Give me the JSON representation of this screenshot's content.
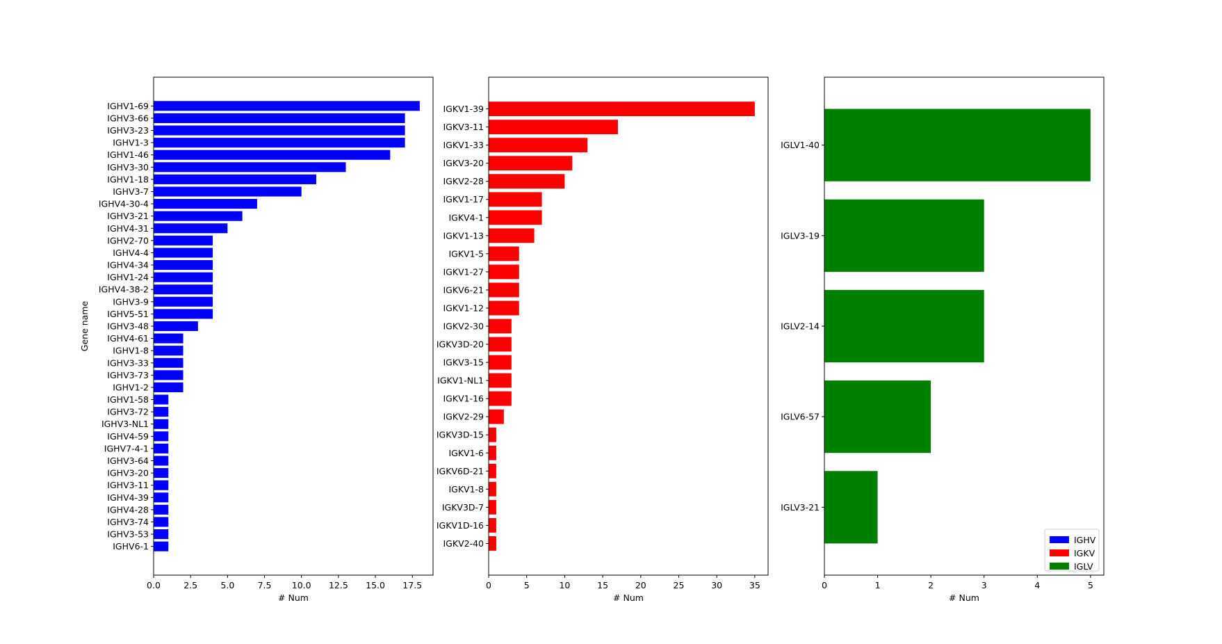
{
  "chart_data": [
    {
      "type": "bar",
      "orientation": "horizontal",
      "categories": [
        "IGHV1-69",
        "IGHV3-66",
        "IGHV3-23",
        "IGHV1-3",
        "IGHV1-46",
        "IGHV3-30",
        "IGHV1-18",
        "IGHV3-7",
        "IGHV4-30-4",
        "IGHV3-21",
        "IGHV4-31",
        "IGHV2-70",
        "IGHV4-4",
        "IGHV4-34",
        "IGHV1-24",
        "IGHV4-38-2",
        "IGHV3-9",
        "IGHV5-51",
        "IGHV3-48",
        "IGHV4-61",
        "IGHV1-8",
        "IGHV3-33",
        "IGHV3-73",
        "IGHV1-2",
        "IGHV1-58",
        "IGHV3-72",
        "IGHV3-NL1",
        "IGHV4-59",
        "IGHV7-4-1",
        "IGHV3-64",
        "IGHV3-20",
        "IGHV3-11",
        "IGHV4-39",
        "IGHV4-28",
        "IGHV3-74",
        "IGHV3-53",
        "IGHV6-1"
      ],
      "values": [
        18,
        17,
        17,
        17,
        16,
        13,
        11,
        10,
        7,
        6,
        5,
        4,
        4,
        4,
        4,
        4,
        4,
        4,
        3,
        2,
        2,
        2,
        2,
        2,
        1,
        1,
        1,
        1,
        1,
        1,
        1,
        1,
        1,
        1,
        1,
        1,
        1
      ],
      "color": "#0000ff",
      "xlabel": "# Num",
      "ylabel": "Gene name",
      "xlim": [
        0,
        18.9
      ],
      "xticks": [
        0,
        2.5,
        5,
        7.5,
        10,
        12.5,
        15,
        17.5
      ],
      "xtick_labels": [
        "0.0",
        "2.5",
        "5.0",
        "7.5",
        "10.0",
        "12.5",
        "15.0",
        "17.5"
      ]
    },
    {
      "type": "bar",
      "orientation": "horizontal",
      "categories": [
        "IGKV1-39",
        "IGKV3-11",
        "IGKV1-33",
        "IGKV3-20",
        "IGKV2-28",
        "IGKV1-17",
        "IGKV4-1",
        "IGKV1-13",
        "IGKV1-5",
        "IGKV1-27",
        "IGKV6-21",
        "IGKV1-12",
        "IGKV2-30",
        "IGKV3D-20",
        "IGKV3-15",
        "IGKV1-NL1",
        "IGKV1-16",
        "IGKV2-29",
        "IGKV3D-15",
        "IGKV1-6",
        "IGKV6D-21",
        "IGKV1-8",
        "IGKV3D-7",
        "IGKV1D-16",
        "IGKV2-40"
      ],
      "values": [
        35,
        17,
        13,
        11,
        10,
        7,
        7,
        6,
        4,
        4,
        4,
        4,
        3,
        3,
        3,
        3,
        3,
        2,
        1,
        1,
        1,
        1,
        1,
        1,
        1
      ],
      "color": "#ff0000",
      "xlabel": "# Num",
      "ylabel": "",
      "xlim": [
        0,
        36.75
      ],
      "xticks": [
        0,
        5,
        10,
        15,
        20,
        25,
        30,
        35
      ],
      "xtick_labels": [
        "0",
        "5",
        "10",
        "15",
        "20",
        "25",
        "30",
        "35"
      ]
    },
    {
      "type": "bar",
      "orientation": "horizontal",
      "categories": [
        "IGLV1-40",
        "IGLV3-19",
        "IGLV2-14",
        "IGLV6-57",
        "IGLV3-21"
      ],
      "values": [
        5,
        3,
        3,
        2,
        1
      ],
      "color": "#008000",
      "xlabel": "# Num",
      "ylabel": "",
      "xlim": [
        0,
        5.25
      ],
      "xticks": [
        0,
        1,
        2,
        3,
        4,
        5
      ],
      "xtick_labels": [
        "0",
        "1",
        "2",
        "3",
        "4",
        "5"
      ]
    }
  ],
  "legend": {
    "placement": "lower-right",
    "entries": [
      {
        "label": "IGHV",
        "color": "#0000ff"
      },
      {
        "label": "IGKV",
        "color": "#ff0000"
      },
      {
        "label": "IGLV",
        "color": "#008000"
      }
    ]
  }
}
